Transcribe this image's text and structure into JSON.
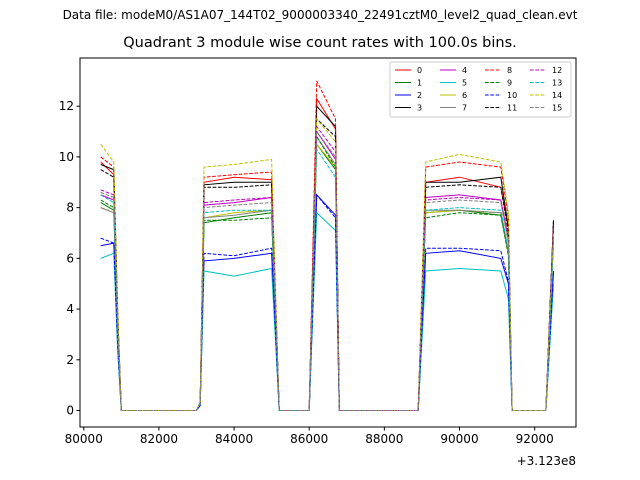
{
  "suptitle": "Data file: modeM0/AS1A07_144T02_9000003340_22491cztM0_level2_quad_clean.evt",
  "chart_data": {
    "type": "line",
    "title": "Quadrant 3 module wise count rates with 100.0s bins.",
    "xlabel": "",
    "ylabel": "",
    "x_offset_label": "+3.123e8",
    "xlim": [
      79900,
      93100
    ],
    "ylim": [
      -0.65,
      13.9
    ],
    "xticks": [
      80000,
      82000,
      84000,
      86000,
      88000,
      90000,
      92000
    ],
    "xtick_labels": [
      "80000",
      "82000",
      "84000",
      "86000",
      "88000",
      "90000",
      "92000"
    ],
    "yticks": [
      0,
      2,
      4,
      6,
      8,
      10,
      12
    ],
    "ytick_labels": [
      "0",
      "2",
      "4",
      "6",
      "8",
      "10",
      "12"
    ],
    "legend_position": "top-right",
    "x": [
      80450,
      80800,
      80900,
      81000,
      83000,
      83100,
      83200,
      84000,
      85000,
      85100,
      85200,
      86000,
      86200,
      86700,
      86800,
      88900,
      89100,
      90000,
      91100,
      91300,
      91400,
      92300,
      92500
    ],
    "series": [
      {
        "name": "0",
        "color": "#ff0000",
        "dash": false,
        "values": [
          9.8,
          9.3,
          3.9,
          0,
          0,
          0.3,
          9.0,
          9.2,
          9.1,
          4.5,
          0,
          0,
          12.3,
          11.1,
          0,
          0,
          9.0,
          9.2,
          8.8,
          7.2,
          0,
          0,
          7.2
        ]
      },
      {
        "name": "1",
        "color": "#008000",
        "dash": false,
        "values": [
          8.2,
          7.9,
          3.3,
          0,
          0,
          0.3,
          7.4,
          7.6,
          7.8,
          3.9,
          0,
          0,
          10.5,
          9.5,
          0,
          0,
          7.8,
          7.9,
          7.7,
          6.2,
          0,
          0,
          6.8
        ]
      },
      {
        "name": "2",
        "color": "#0000ff",
        "dash": false,
        "values": [
          6.5,
          6.6,
          2.6,
          0,
          0,
          0.2,
          5.9,
          6.0,
          6.2,
          3.1,
          0,
          0,
          8.5,
          7.7,
          0,
          0,
          6.2,
          6.3,
          6.0,
          5.0,
          0,
          0,
          5.5
        ]
      },
      {
        "name": "3",
        "color": "#000000",
        "dash": false,
        "values": [
          9.7,
          9.5,
          3.9,
          0,
          0,
          0.3,
          8.9,
          9.0,
          9.0,
          4.5,
          0,
          0,
          12.0,
          11.2,
          0,
          0,
          9.0,
          9.0,
          9.2,
          7.2,
          0,
          0,
          7.5
        ]
      },
      {
        "name": "4",
        "color": "#bf00bf",
        "dash": false,
        "values": [
          8.5,
          8.3,
          3.4,
          0,
          0,
          0.3,
          8.1,
          8.2,
          8.4,
          4.2,
          0,
          0,
          11.0,
          9.9,
          0,
          0,
          8.4,
          8.5,
          8.3,
          6.8,
          0,
          0,
          7.3
        ]
      },
      {
        "name": "5",
        "color": "#00bfbf",
        "dash": false,
        "values": [
          6.0,
          6.2,
          2.4,
          0,
          0,
          0.2,
          5.5,
          5.3,
          5.6,
          2.8,
          0,
          0,
          7.8,
          7.1,
          0,
          0,
          5.5,
          5.6,
          5.5,
          4.4,
          0,
          0,
          5.0
        ]
      },
      {
        "name": "6",
        "color": "#bfbf00",
        "dash": false,
        "values": [
          8.0,
          7.8,
          3.2,
          0,
          0,
          0.3,
          7.6,
          7.8,
          7.9,
          3.9,
          0,
          0,
          10.5,
          9.6,
          0,
          0,
          7.8,
          7.9,
          7.8,
          6.3,
          0,
          0,
          6.9
        ]
      },
      {
        "name": "7",
        "color": "#808080",
        "dash": false,
        "values": [
          8.0,
          7.8,
          3.2,
          0,
          0,
          0.3,
          7.6,
          7.7,
          7.9,
          3.9,
          0,
          0,
          10.8,
          9.7,
          0,
          0,
          7.9,
          7.9,
          7.8,
          6.3,
          0,
          0,
          7.0
        ]
      },
      {
        "name": "8",
        "color": "#ff0000",
        "dash": true,
        "values": [
          10.0,
          9.6,
          4.0,
          0,
          0,
          0.3,
          9.2,
          9.3,
          9.4,
          4.7,
          0,
          0,
          13.0,
          11.5,
          0,
          0,
          9.6,
          9.8,
          9.6,
          7.6,
          0,
          0,
          7.4
        ]
      },
      {
        "name": "9",
        "color": "#008000",
        "dash": true,
        "values": [
          8.3,
          8.0,
          3.3,
          0,
          0,
          0.3,
          7.5,
          7.5,
          7.6,
          3.8,
          0,
          0,
          10.8,
          9.6,
          0,
          0,
          7.6,
          7.8,
          7.7,
          6.1,
          0,
          0,
          6.8
        ]
      },
      {
        "name": "10",
        "color": "#0000ff",
        "dash": true,
        "values": [
          6.8,
          6.6,
          2.7,
          0,
          0,
          0.2,
          6.2,
          6.1,
          6.4,
          3.2,
          0,
          0,
          8.5,
          7.6,
          0,
          0,
          6.4,
          6.4,
          6.3,
          5.1,
          0,
          0,
          5.5
        ]
      },
      {
        "name": "11",
        "color": "#000000",
        "dash": true,
        "values": [
          9.5,
          9.2,
          3.8,
          0,
          0,
          0.3,
          8.8,
          8.8,
          8.9,
          4.4,
          0,
          0,
          11.5,
          10.8,
          0,
          0,
          8.8,
          8.9,
          8.8,
          7.0,
          0,
          0,
          7.5
        ]
      },
      {
        "name": "12",
        "color": "#bf00bf",
        "dash": true,
        "values": [
          8.7,
          8.5,
          3.5,
          0,
          0,
          0.3,
          8.2,
          8.3,
          8.4,
          4.2,
          0,
          0,
          11.2,
          10.2,
          0,
          0,
          8.3,
          8.4,
          8.3,
          6.7,
          0,
          0,
          7.2
        ]
      },
      {
        "name": "13",
        "color": "#00bfbf",
        "dash": true,
        "values": [
          8.5,
          8.2,
          3.4,
          0,
          0,
          0.3,
          7.8,
          7.9,
          7.9,
          3.9,
          0,
          0,
          10.3,
          9.2,
          0,
          0,
          7.9,
          8.0,
          7.9,
          6.3,
          0,
          0,
          6.5
        ]
      },
      {
        "name": "14",
        "color": "#bfbf00",
        "dash": true,
        "values": [
          10.5,
          9.8,
          4.2,
          0,
          0,
          0.3,
          9.6,
          9.7,
          9.9,
          4.9,
          0,
          0,
          11.5,
          10.6,
          0,
          0,
          9.8,
          10.1,
          9.8,
          7.8,
          0,
          0,
          7.0
        ]
      },
      {
        "name": "15",
        "color": "#808080",
        "dash": true,
        "values": [
          8.6,
          8.4,
          3.4,
          0,
          0,
          0.3,
          8.0,
          8.1,
          8.2,
          4.1,
          0,
          0,
          11.0,
          10.0,
          0,
          0,
          8.2,
          8.3,
          8.2,
          6.6,
          0,
          0,
          7.0
        ]
      }
    ]
  }
}
